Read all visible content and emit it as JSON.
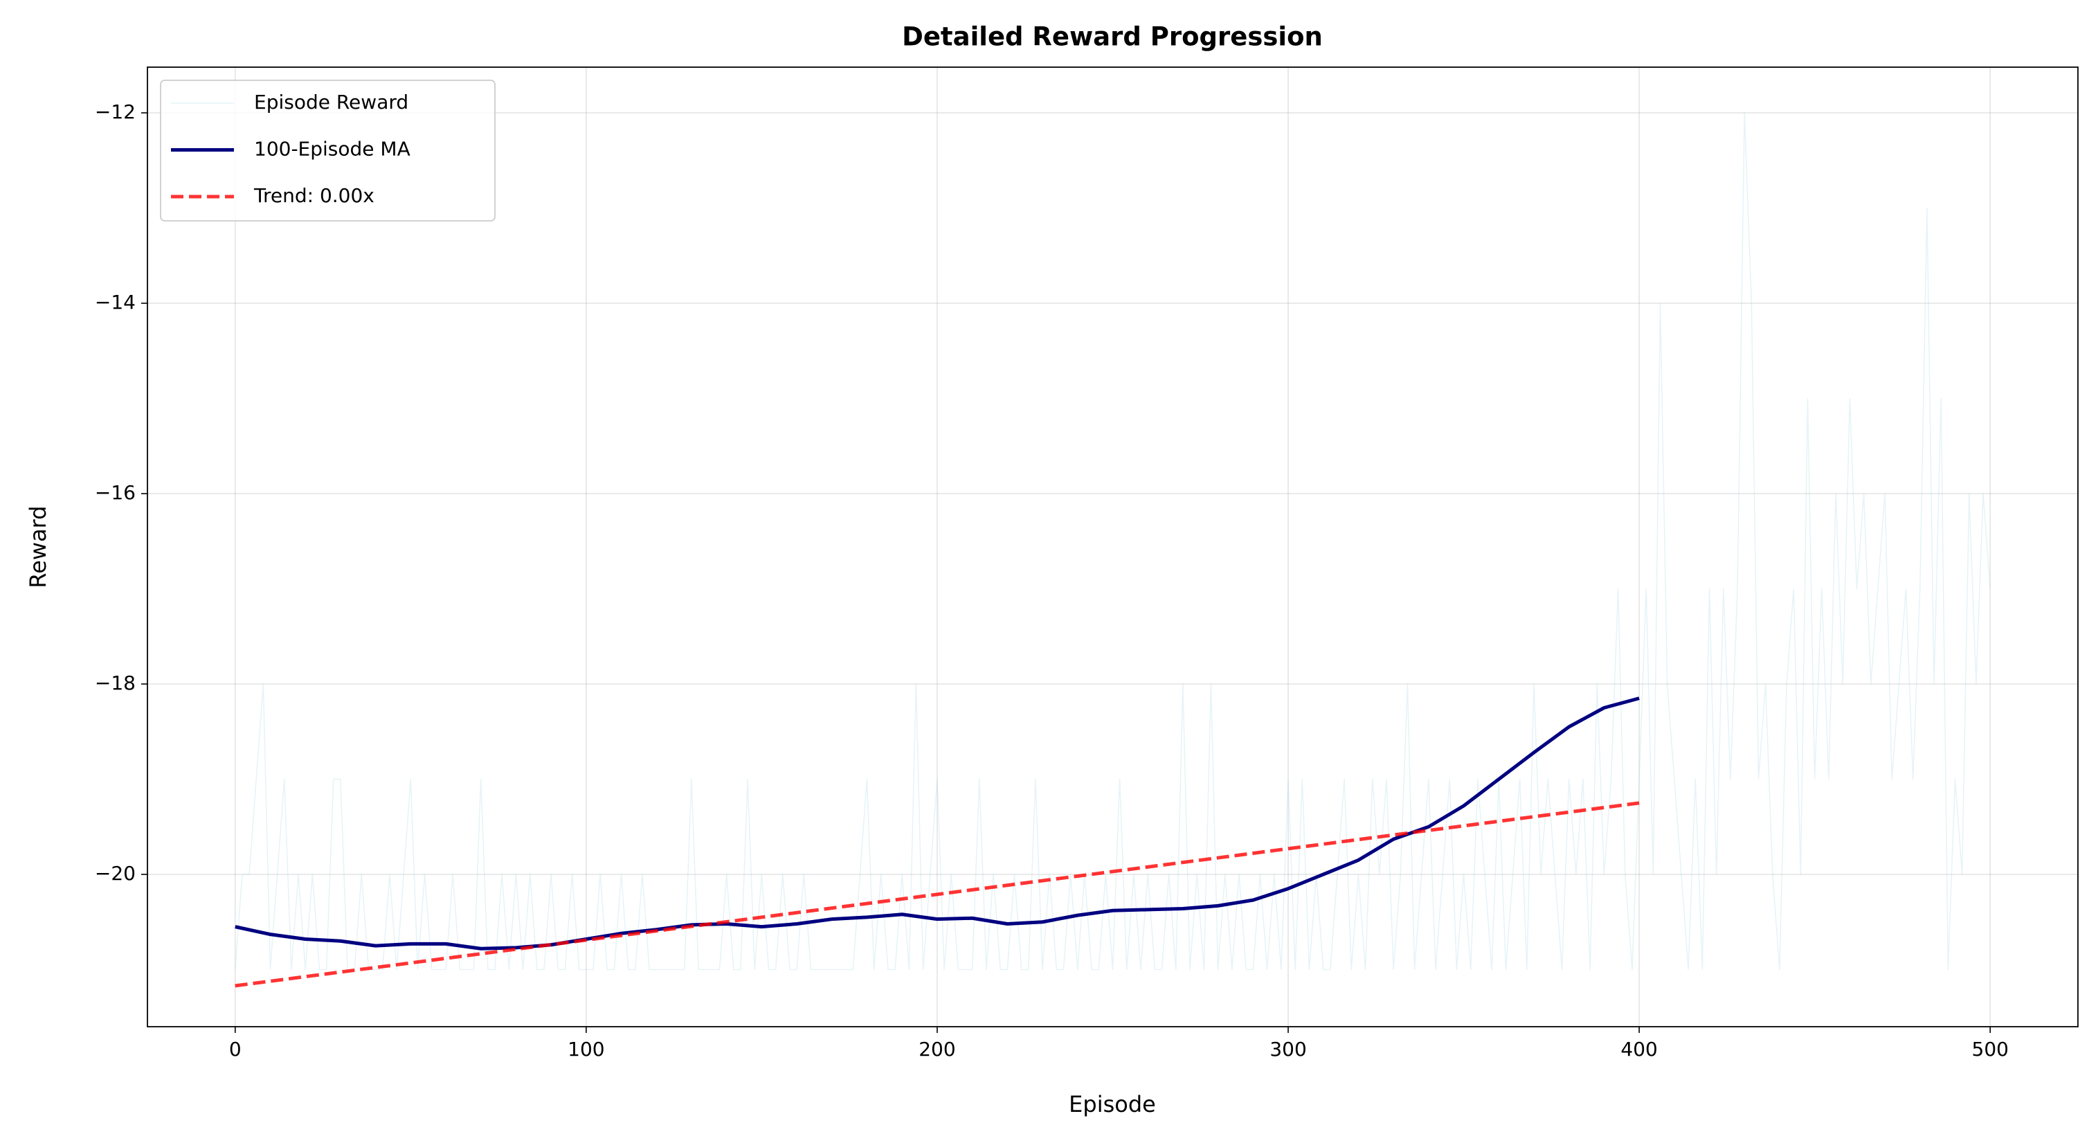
{
  "chart_data": {
    "type": "line",
    "title": "Detailed Reward Progression",
    "xlabel": "Episode",
    "ylabel": "Reward",
    "xlim": [
      -25,
      525
    ],
    "ylim": [
      -21.6,
      -11.52
    ],
    "xticks": [
      0,
      100,
      200,
      300,
      400,
      500
    ],
    "yticks": [
      {
        "value": -20,
        "label": "−20"
      },
      {
        "value": -18,
        "label": "−18"
      },
      {
        "value": -16,
        "label": "−16"
      },
      {
        "value": -14,
        "label": "−14"
      },
      {
        "value": -12,
        "label": "−12"
      }
    ],
    "grid": true,
    "legend": "upper left",
    "series": [
      {
        "name": "Episode Reward",
        "color": "#add8e6",
        "opacity": 0.3,
        "width": 1.5,
        "x": [
          0,
          2,
          4,
          6,
          8,
          10,
          12,
          14,
          16,
          18,
          20,
          22,
          24,
          26,
          28,
          30,
          32,
          34,
          36,
          38,
          40,
          42,
          44,
          46,
          48,
          50,
          52,
          54,
          56,
          58,
          60,
          62,
          64,
          66,
          68,
          70,
          72,
          74,
          76,
          78,
          80,
          82,
          84,
          86,
          88,
          90,
          92,
          94,
          96,
          98,
          100,
          102,
          104,
          106,
          108,
          110,
          112,
          114,
          116,
          118,
          120,
          122,
          124,
          126,
          128,
          130,
          132,
          134,
          136,
          138,
          140,
          142,
          144,
          146,
          148,
          150,
          152,
          154,
          156,
          158,
          160,
          162,
          164,
          166,
          168,
          170,
          172,
          174,
          176,
          178,
          180,
          182,
          184,
          186,
          188,
          190,
          192,
          194,
          196,
          198,
          200,
          202,
          204,
          206,
          208,
          210,
          212,
          214,
          216,
          218,
          220,
          222,
          224,
          226,
          228,
          230,
          232,
          234,
          236,
          238,
          240,
          242,
          244,
          246,
          248,
          250,
          252,
          254,
          256,
          258,
          260,
          262,
          264,
          266,
          268,
          270,
          272,
          274,
          276,
          278,
          280,
          282,
          284,
          286,
          288,
          290,
          292,
          294,
          296,
          298,
          300,
          302,
          304,
          306,
          308,
          310,
          312,
          314,
          316,
          318,
          320,
          322,
          324,
          326,
          328,
          330,
          332,
          334,
          336,
          338,
          340,
          342,
          344,
          346,
          348,
          350,
          352,
          354,
          356,
          358,
          360,
          362,
          364,
          366,
          368,
          370,
          372,
          374,
          376,
          378,
          380,
          382,
          384,
          386,
          388,
          390,
          392,
          394,
          396,
          398,
          400,
          402,
          404,
          406,
          408,
          410,
          412,
          414,
          416,
          418,
          420,
          422,
          424,
          426,
          428,
          430,
          432,
          434,
          436,
          438,
          440,
          442,
          444,
          446,
          448,
          450,
          452,
          454,
          456,
          458,
          460,
          462,
          464,
          466,
          468,
          470,
          472,
          474,
          476,
          478,
          480,
          482,
          484,
          486,
          488,
          490,
          492,
          494,
          496,
          498,
          500
        ],
        "values": [
          -21,
          -20,
          -20,
          -19,
          -18,
          -21,
          -20,
          -19,
          -21,
          -20,
          -21,
          -20,
          -21,
          -21,
          -19,
          -19,
          -21,
          -21,
          -20,
          -21,
          -21,
          -21,
          -20,
          -21,
          -20,
          -19,
          -21,
          -20,
          -21,
          -21,
          -21,
          -20,
          -21,
          -21,
          -21,
          -19,
          -21,
          -21,
          -20,
          -21,
          -20,
          -21,
          -20,
          -21,
          -21,
          -20,
          -21,
          -21,
          -20,
          -21,
          -21,
          -21,
          -20,
          -21,
          -21,
          -20,
          -21,
          -21,
          -20,
          -21,
          -21,
          -21,
          -21,
          -21,
          -21,
          -19,
          -21,
          -21,
          -21,
          -21,
          -20,
          -21,
          -21,
          -19,
          -21,
          -20,
          -21,
          -21,
          -20,
          -21,
          -21,
          -20,
          -21,
          -21,
          -21,
          -21,
          -21,
          -21,
          -21,
          -20,
          -19,
          -21,
          -20,
          -21,
          -21,
          -20,
          -21,
          -18,
          -21,
          -20,
          -19,
          -21,
          -20,
          -21,
          -21,
          -21,
          -19,
          -21,
          -20,
          -21,
          -21,
          -20,
          -21,
          -21,
          -19,
          -21,
          -20,
          -21,
          -21,
          -20,
          -21,
          -20,
          -21,
          -21,
          -20,
          -21,
          -19,
          -21,
          -20,
          -21,
          -20,
          -21,
          -21,
          -20,
          -21,
          -18,
          -21,
          -20,
          -21,
          -18,
          -21,
          -20,
          -21,
          -20,
          -21,
          -21,
          -20,
          -21,
          -20,
          -21,
          -19,
          -21,
          -19,
          -21,
          -20,
          -21,
          -21,
          -20,
          -19,
          -21,
          -20,
          -21,
          -19,
          -20,
          -19,
          -21,
          -20,
          -18,
          -21,
          -20,
          -19,
          -21,
          -20,
          -19,
          -21,
          -20,
          -21,
          -19,
          -20,
          -21,
          -19,
          -21,
          -20,
          -19,
          -21,
          -18,
          -20,
          -19,
          -20,
          -21,
          -19,
          -20,
          -19,
          -21,
          -18,
          -20,
          -19,
          -17,
          -20,
          -21,
          -19,
          -17,
          -20,
          -14,
          -18,
          -19,
          -20,
          -21,
          -19,
          -21,
          -17,
          -20,
          -17,
          -19,
          -17,
          -12,
          -14,
          -19,
          -18,
          -20,
          -21,
          -18,
          -17,
          -20,
          -15,
          -19,
          -17,
          -19,
          -16,
          -18,
          -15,
          -17,
          -16,
          -18,
          -17,
          -16,
          -19,
          -18,
          -17,
          -19,
          -17,
          -13,
          -18,
          -15,
          -21,
          -19,
          -20,
          -16,
          -18,
          -16,
          -17
        ]
      },
      {
        "name": "100-Episode MA",
        "color": "#000080",
        "opacity": 1,
        "width": 5,
        "x": [
          0,
          10,
          20,
          30,
          40,
          50,
          60,
          70,
          80,
          90,
          100,
          110,
          120,
          130,
          140,
          150,
          160,
          170,
          180,
          190,
          200,
          210,
          220,
          230,
          240,
          250,
          260,
          270,
          280,
          290,
          300,
          310,
          320,
          330,
          340,
          350,
          360,
          370,
          380,
          390,
          400
        ],
        "values": [
          -20.55,
          -20.63,
          -20.68,
          -20.7,
          -20.75,
          -20.73,
          -20.73,
          -20.78,
          -20.77,
          -20.74,
          -20.68,
          -20.62,
          -20.58,
          -20.53,
          -20.52,
          -20.55,
          -20.52,
          -20.47,
          -20.45,
          -20.42,
          -20.47,
          -20.46,
          -20.52,
          -20.5,
          -20.43,
          -20.38,
          -20.37,
          -20.36,
          -20.33,
          -20.27,
          -20.15,
          -20.0,
          -19.85,
          -19.63,
          -19.5,
          -19.28,
          -19.0,
          -18.72,
          -18.45,
          -18.25,
          -18.15
        ]
      },
      {
        "name": "Trend: 0.00x",
        "color": "#ff0000",
        "opacity": 0.8,
        "width": 5,
        "dashed": true,
        "x": [
          0,
          400
        ],
        "values": [
          -21.17,
          -19.25
        ]
      }
    ]
  }
}
